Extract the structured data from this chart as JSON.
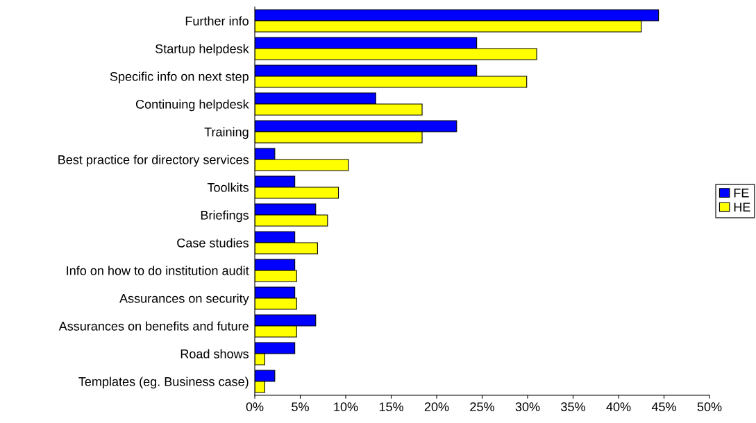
{
  "chart_data": {
    "type": "bar",
    "orientation": "horizontal",
    "categories": [
      "Further info",
      "Startup helpdesk",
      "Specific info on next step",
      "Continuing helpdesk",
      "Training",
      "Best practice for directory services",
      "Toolkits",
      "Briefings",
      "Case studies",
      "Info on how to do institution audit",
      "Assurances on security",
      "Assurances on benefits and future",
      "Road shows",
      "Templates (eg. Business case)"
    ],
    "series": [
      {
        "name": "FE",
        "color": "#0000ff",
        "values": [
          44.4,
          24.4,
          24.4,
          13.3,
          22.2,
          2.2,
          4.4,
          6.7,
          4.4,
          4.4,
          4.4,
          6.7,
          4.4,
          2.2
        ]
      },
      {
        "name": "HE",
        "color": "#ffff00",
        "values": [
          42.5,
          31.0,
          29.9,
          18.4,
          18.4,
          10.3,
          9.2,
          8.0,
          6.9,
          4.6,
          4.6,
          4.6,
          1.1,
          1.1
        ]
      }
    ],
    "xlim": [
      0,
      50
    ],
    "xticks": [
      {
        "value": 0,
        "label": "0%"
      },
      {
        "value": 5,
        "label": "5%"
      },
      {
        "value": 10,
        "label": "10%"
      },
      {
        "value": 15,
        "label": "15%"
      },
      {
        "value": 20,
        "label": "20%"
      },
      {
        "value": 25,
        "label": "25%"
      },
      {
        "value": 30,
        "label": "30%"
      },
      {
        "value": 35,
        "label": "35%"
      },
      {
        "value": 40,
        "label": "40%"
      },
      {
        "value": 45,
        "label": "45%"
      },
      {
        "value": 50,
        "label": "50%"
      }
    ],
    "legend": "right",
    "grid": false
  }
}
